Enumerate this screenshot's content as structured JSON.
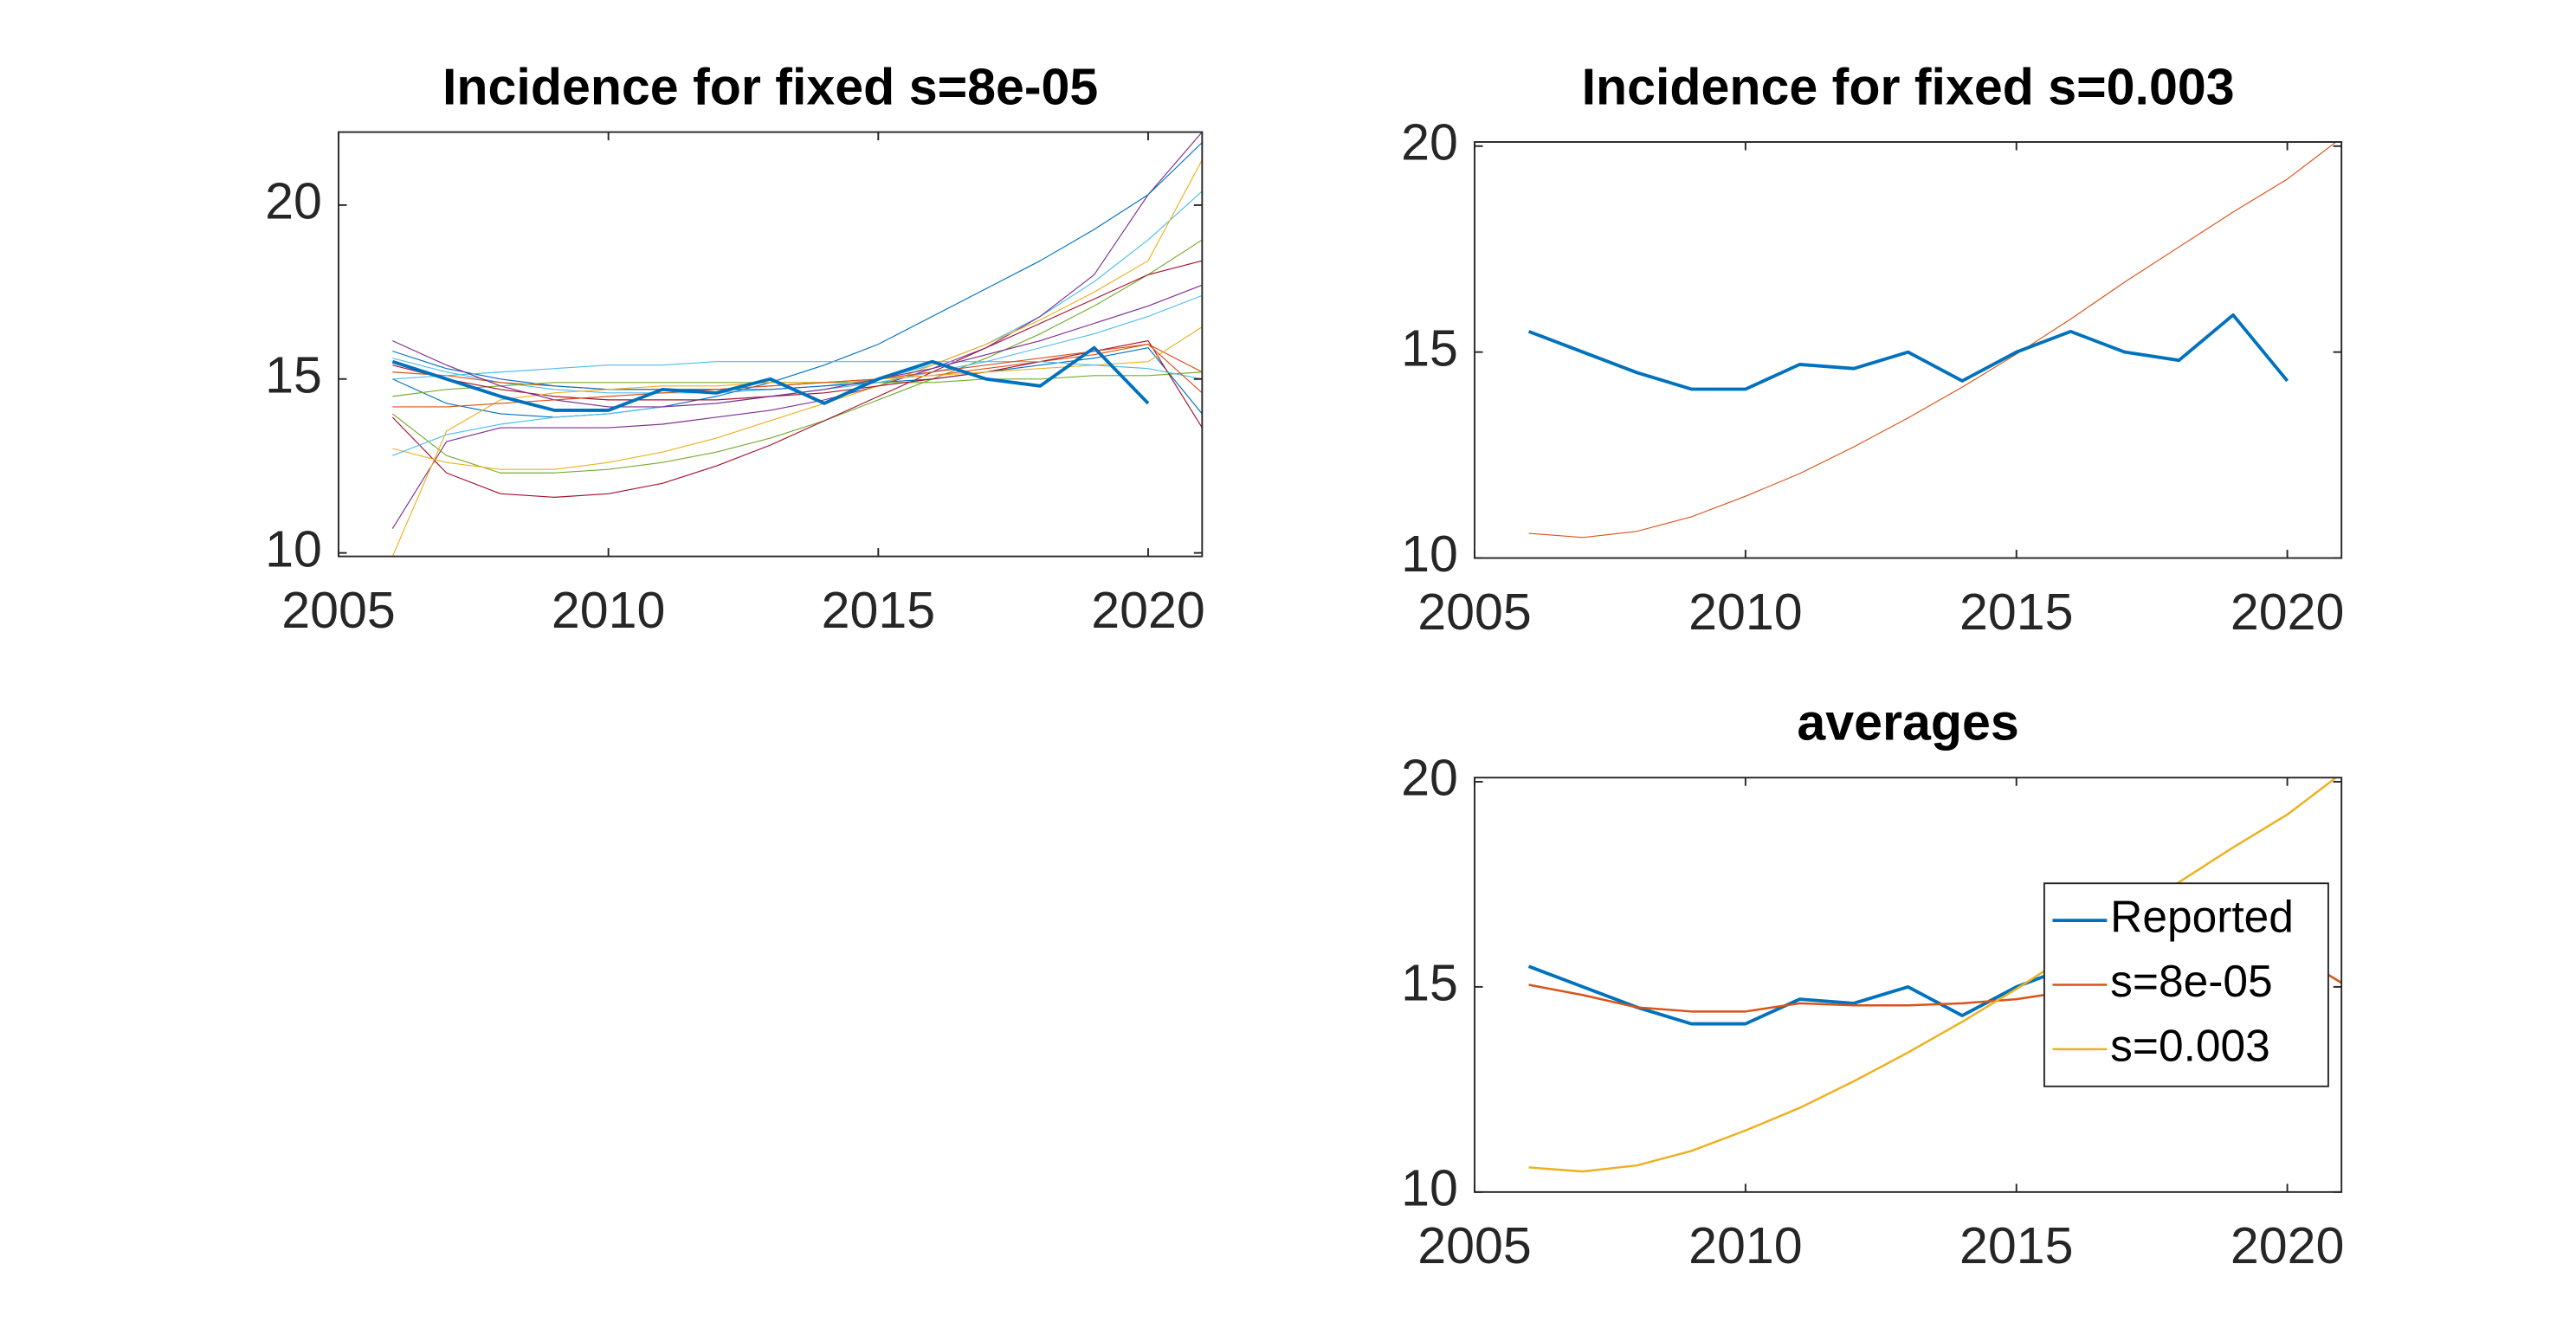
{
  "chart_data": [
    {
      "type": "line",
      "title": "Incidence for fixed s=8e-05",
      "x": [
        2006,
        2007,
        2008,
        2009,
        2010,
        2011,
        2012,
        2013,
        2014,
        2015,
        2016,
        2017,
        2018,
        2019,
        2020,
        2021
      ],
      "xlim": [
        2005,
        2021
      ],
      "xticks": [
        2005,
        2010,
        2015,
        2020
      ],
      "ylim": [
        9.9,
        22.1
      ],
      "yticks": [
        10,
        15,
        20
      ],
      "series": [
        {
          "color": "#4DBEEE",
          "linewidth": 0.6,
          "values": [
            15.6,
            15.2,
            14.9,
            14.7,
            14.6,
            14.6,
            14.6,
            14.7,
            14.8,
            15.0,
            15.4,
            16.0,
            16.8,
            17.8,
            19.0,
            20.4
          ]
        },
        {
          "color": "#7E2F8E",
          "linewidth": 0.6,
          "values": [
            10.7,
            13.2,
            13.6,
            13.6,
            13.6,
            13.7,
            13.9,
            14.1,
            14.4,
            14.8,
            15.3,
            15.9,
            16.8,
            18.0,
            20.3,
            22.1
          ]
        },
        {
          "color": "#0072BD",
          "linewidth": 0.6,
          "values": [
            15.0,
            14.3,
            14.0,
            13.9,
            14.0,
            14.2,
            14.5,
            14.9,
            15.4,
            16.0,
            16.8,
            17.6,
            18.4,
            19.3,
            20.3,
            21.8
          ]
        },
        {
          "color": "#77AC30",
          "linewidth": 0.6,
          "values": [
            14.0,
            12.8,
            12.3,
            12.3,
            12.4,
            12.6,
            12.9,
            13.3,
            13.8,
            14.4,
            15.0,
            15.6,
            16.3,
            17.1,
            18.0,
            19.0
          ]
        },
        {
          "color": "#A2142F",
          "linewidth": 0.6,
          "values": [
            13.9,
            12.3,
            11.7,
            11.6,
            11.7,
            12.0,
            12.5,
            13.1,
            13.8,
            14.5,
            15.2,
            15.9,
            16.6,
            17.3,
            18.0,
            18.4
          ]
        },
        {
          "color": "#EDB120",
          "linewidth": 0.6,
          "values": [
            13.0,
            12.6,
            12.4,
            12.4,
            12.6,
            12.9,
            13.3,
            13.8,
            14.3,
            14.8,
            15.4,
            16.0,
            16.7,
            17.5,
            18.4,
            21.3
          ]
        },
        {
          "color": "#D95319",
          "linewidth": 0.6,
          "values": [
            15.2,
            15.1,
            14.9,
            14.8,
            14.7,
            14.7,
            14.7,
            14.8,
            14.9,
            15.0,
            15.1,
            15.3,
            15.5,
            15.7,
            16.0,
            15.2
          ]
        },
        {
          "color": "#0072BD",
          "linewidth": 0.6,
          "values": [
            15.8,
            15.3,
            15.0,
            14.8,
            14.7,
            14.7,
            14.7,
            14.7,
            14.8,
            14.9,
            15.0,
            15.2,
            15.4,
            15.6,
            15.9,
            14.0
          ]
        },
        {
          "color": "#77AC30",
          "linewidth": 0.6,
          "values": [
            14.5,
            14.7,
            14.8,
            14.9,
            14.9,
            14.9,
            14.9,
            14.9,
            14.9,
            14.9,
            14.9,
            15.0,
            15.0,
            15.1,
            15.1,
            15.2
          ]
        },
        {
          "color": "#4DBEEE",
          "linewidth": 0.6,
          "values": [
            12.8,
            13.4,
            13.7,
            13.9,
            14.0,
            14.2,
            14.3,
            14.5,
            14.7,
            14.9,
            15.2,
            15.5,
            15.9,
            16.3,
            16.8,
            17.4
          ]
        },
        {
          "color": "#A2142F",
          "linewidth": 0.6,
          "values": [
            15.4,
            15.0,
            14.7,
            14.5,
            14.4,
            14.4,
            14.4,
            14.5,
            14.6,
            14.8,
            15.0,
            15.2,
            15.5,
            15.8,
            16.1,
            13.6
          ]
        },
        {
          "color": "#EDB120",
          "linewidth": 0.6,
          "values": [
            9.9,
            13.5,
            14.4,
            14.6,
            14.7,
            14.8,
            14.8,
            14.9,
            14.9,
            15.0,
            15.1,
            15.2,
            15.3,
            15.4,
            15.5,
            16.5
          ]
        },
        {
          "color": "#4DBEEE",
          "linewidth": 0.6,
          "values": [
            15.0,
            15.1,
            15.2,
            15.3,
            15.4,
            15.4,
            15.5,
            15.5,
            15.5,
            15.5,
            15.5,
            15.5,
            15.5,
            15.4,
            15.3,
            15.0
          ]
        },
        {
          "color": "#7E2F8E",
          "linewidth": 0.6,
          "values": [
            16.1,
            15.4,
            14.8,
            14.4,
            14.2,
            14.2,
            14.3,
            14.5,
            14.7,
            15.0,
            15.3,
            15.7,
            16.1,
            16.6,
            17.1,
            17.7
          ]
        },
        {
          "color": "#D95319",
          "linewidth": 0.6,
          "values": [
            14.2,
            14.2,
            14.3,
            14.4,
            14.5,
            14.6,
            14.7,
            14.8,
            14.9,
            15.0,
            15.2,
            15.4,
            15.6,
            15.8,
            16.0,
            14.6
          ]
        },
        {
          "color": "#0072BD",
          "linewidth": 2,
          "values": [
            15.5,
            15.0,
            14.5,
            14.1,
            14.1,
            14.7,
            14.6,
            15.0,
            14.3,
            15.0,
            15.5,
            15.0,
            14.8,
            15.9,
            14.3,
            null
          ]
        }
      ]
    },
    {
      "type": "line",
      "title": "Incidence for fixed s=0.003",
      "x": [
        2006,
        2007,
        2008,
        2009,
        2010,
        2011,
        2012,
        2013,
        2014,
        2015,
        2016,
        2017,
        2018,
        2019,
        2020,
        2021
      ],
      "xlim": [
        2005,
        2021
      ],
      "xticks": [
        2005,
        2010,
        2015,
        2020
      ],
      "ylim": [
        10,
        20.1
      ],
      "yticks": [
        10,
        15,
        20
      ],
      "series": [
        {
          "color": "#D95319",
          "linewidth": 0.6,
          "values": [
            10.6,
            10.5,
            10.65,
            11.0,
            11.5,
            12.05,
            12.7,
            13.4,
            14.15,
            14.95,
            15.8,
            16.7,
            17.55,
            18.4,
            19.2,
            20.2
          ]
        },
        {
          "color": "#0072BD",
          "linewidth": 2,
          "values": [
            15.5,
            15.0,
            14.5,
            14.1,
            14.1,
            14.7,
            14.6,
            15.0,
            14.3,
            15.0,
            15.5,
            15.0,
            14.8,
            15.9,
            14.3,
            null
          ]
        }
      ]
    },
    {
      "type": "line",
      "title": "averages",
      "x": [
        2006,
        2007,
        2008,
        2009,
        2010,
        2011,
        2012,
        2013,
        2014,
        2015,
        2016,
        2017,
        2018,
        2019,
        2020,
        2021
      ],
      "xlim": [
        2005,
        2021
      ],
      "xticks": [
        2005,
        2010,
        2015,
        2020
      ],
      "ylim": [
        10,
        20.1
      ],
      "yticks": [
        10,
        15,
        20
      ],
      "legend": "east",
      "series": [
        {
          "name": "Reported",
          "color": "#0072BD",
          "linewidth": 2,
          "values": [
            15.5,
            15.0,
            14.5,
            14.1,
            14.1,
            14.7,
            14.6,
            15.0,
            14.3,
            15.0,
            15.5,
            15.0,
            14.8,
            15.9,
            14.3,
            null
          ]
        },
        {
          "name": "s=8e-05",
          "color": "#D95319",
          "linewidth": 1.3,
          "values": [
            15.05,
            14.8,
            14.5,
            14.4,
            14.4,
            14.6,
            14.55,
            14.55,
            14.6,
            14.7,
            14.9,
            15.1,
            15.3,
            15.6,
            15.9,
            15.1
          ]
        },
        {
          "name": "s=0.003",
          "color": "#EDB120",
          "linewidth": 1.3,
          "values": [
            10.6,
            10.5,
            10.65,
            11.0,
            11.5,
            12.05,
            12.7,
            13.4,
            14.15,
            14.95,
            15.8,
            16.7,
            17.55,
            18.4,
            19.2,
            20.2
          ]
        }
      ]
    }
  ]
}
